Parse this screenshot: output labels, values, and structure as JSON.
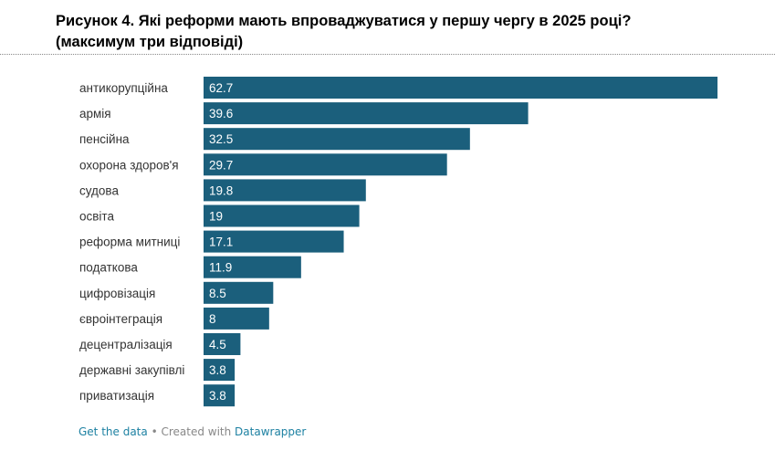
{
  "title": {
    "line1": "Рисунок 4. Які реформи мають впроваджуватися у першу чергу в 2025 році?",
    "line2": "(максимум три відповіді)"
  },
  "colors": {
    "bar": "#1b5f7c",
    "link": "#1d81a2"
  },
  "chart_data": {
    "type": "bar",
    "orientation": "horizontal",
    "categories": [
      "антикорупційна",
      "армія",
      "пенсійна",
      "охорона здоров'я",
      "судова",
      "освіта",
      "реформа митниці",
      "податкова",
      "цифровізація",
      "євроінтеграція",
      "децентралізація",
      "державні закупівлі",
      "приватизація"
    ],
    "values": [
      62.7,
      39.6,
      32.5,
      29.7,
      19.8,
      19,
      17.1,
      11.9,
      8.5,
      8,
      4.5,
      3.8,
      3.8
    ],
    "value_labels": [
      "62.7",
      "39.6",
      "32.5",
      "29.7",
      "19.8",
      "19",
      "17.1",
      "11.9",
      "8.5",
      "8",
      "4.5",
      "3.8",
      "3.8"
    ],
    "xlim": [
      0,
      62.7
    ],
    "grid": false,
    "legend": "none"
  },
  "footer": {
    "get_data": "Get the data",
    "separator": " • Created with ",
    "datawrapper": "Datawrapper"
  }
}
